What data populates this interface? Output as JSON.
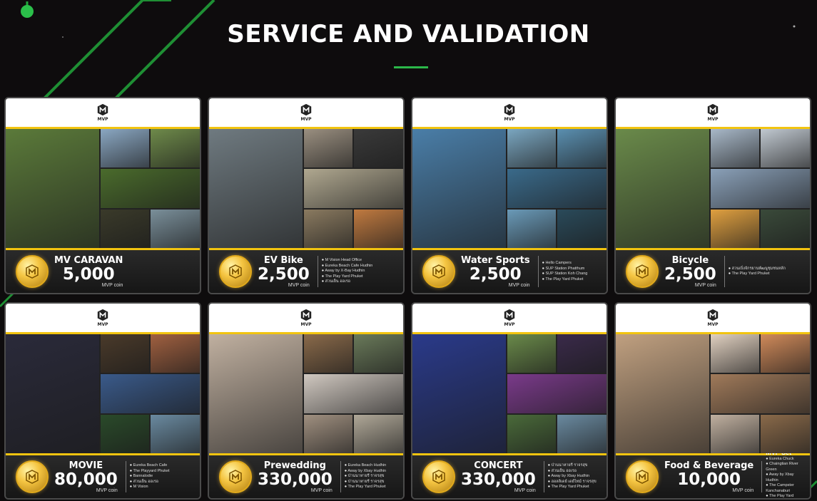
{
  "page": {
    "title": "SERVICE AND VALIDATION"
  },
  "brand": {
    "logo_text": "MVP",
    "coin_unit": "MVP coin"
  },
  "colors": {
    "accent_green": "#2bb84a",
    "gold": "#f2c40f",
    "background": "#0e0c0d"
  },
  "cards": [
    {
      "name": "MV CARAVAN",
      "price": "5,000",
      "list_title": "",
      "locations": [],
      "photos": [
        "#5b7a3a",
        "#8aa7c2",
        "#6e8a4a",
        "#4a6b2c",
        "#3a3a2a",
        "#7a8f9a"
      ]
    },
    {
      "name": "EV Bike",
      "price": "2,500",
      "list_title": "",
      "locations": [
        "M Vision Head Office",
        "Eureka Beach Cafe Hudhin",
        "Away by X-Bay Hudhin",
        "The Play Yard Phuket",
        "ส่วนเย็น ออเรอ"
      ],
      "photos": [
        "#6f7a80",
        "#9a8f80",
        "#3a3a3a",
        "#b0a890",
        "#8a7a60",
        "#c07a40"
      ]
    },
    {
      "name": "Water Sports",
      "price": "2,500",
      "list_title": "",
      "locations": [
        "Hello Campers",
        "SUP Station Phatthum",
        "SUP Station Koh Chang",
        "The Play Yard Phuket"
      ],
      "photos": [
        "#4a7ea8",
        "#7aa6c0",
        "#5a8fb0",
        "#3a6a8a",
        "#6a9ab8",
        "#2a4a5a"
      ]
    },
    {
      "name": "Bicycle",
      "price": "2,500",
      "list_title": "",
      "locations": [
        "สวนเบิ่งจักรยานพัฒนูชุมชนหลัก",
        "The Play Yard Phuket"
      ],
      "photos": [
        "#6a8a4a",
        "#a8b8c8",
        "#c0c8d0",
        "#8aa0b8",
        "#e0a040",
        "#3a4a3a"
      ]
    },
    {
      "name": "MOVIE",
      "price": "80,000",
      "list_title": "",
      "locations": [
        "Eureka Beach Cafe",
        "The Playyard Phuket",
        "Bannalodie",
        "ส่วนเย็น ออเรอ",
        "M Vision"
      ],
      "photos": [
        "#2a2a3a",
        "#4a3a2a",
        "#a06040",
        "#3a5a8a",
        "#2a4a2a",
        "#6a8aa0"
      ]
    },
    {
      "name": "Prewedding",
      "price": "330,000",
      "list_title": "",
      "locations": [
        "Eureka Beach Hudhin",
        "Away by Xbay Hudhin",
        "ป่านนาหายรี ราจรสุข",
        "ป่านนาหายรี ราจรสุข",
        "The Play Yard Phuket"
      ],
      "photos": [
        "#c0b0a0",
        "#8a6a4a",
        "#6a7a5a",
        "#d0c8c0",
        "#a09080",
        "#b0a898"
      ]
    },
    {
      "name": "CONCERT",
      "price": "330,000",
      "list_title": "",
      "locations": [
        "ป่านนาหายรี ราจรสุข",
        "ส่วนเย็น ออเรอ",
        "Away by Xbay Hudhin",
        "ฮอลลิเดย์ เดย์ไทม์ ราจรสุข",
        "The Play Yard Phuket"
      ],
      "photos": [
        "#2a3a8a",
        "#6a8a4a",
        "#3a2a4a",
        "#7a3a8a",
        "#4a6a3a",
        "#6a8aa0"
      ]
    },
    {
      "name": "Food & Beverage",
      "price": "10,000",
      "list_title": "MVP Set",
      "locations": [
        "Eureka Chuck",
        "Chaingtian River Green",
        "Away by Xbay Hudhin",
        "The Campster Kanchanaburi",
        "The Play Yard Phuket"
      ],
      "photos": [
        "#c0a080",
        "#e0d0c0",
        "#d08a5a",
        "#a07a5a",
        "#c0b0a0",
        "#8a6a4a"
      ]
    }
  ]
}
